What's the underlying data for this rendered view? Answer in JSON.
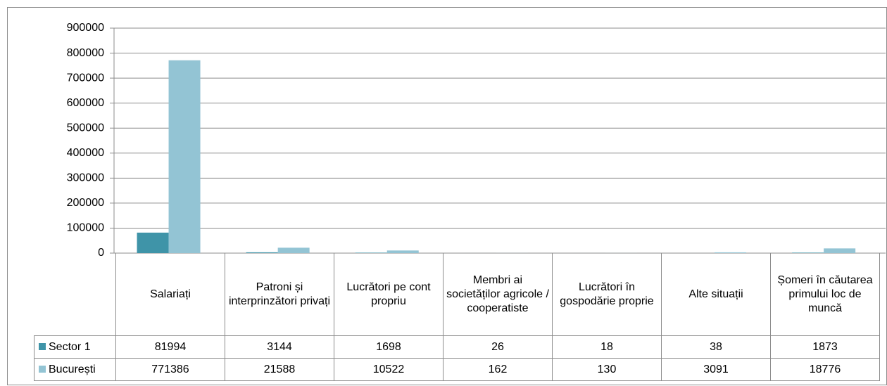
{
  "chart_data": {
    "type": "bar",
    "categories": [
      "Salariați",
      "Patroni și interprinzători privați",
      "Lucrători pe cont propriu",
      "Membri ai societăților agricole / cooperatiste",
      "Lucrători în gospodărie proprie",
      "Alte situații",
      "Șomeri în căutarea primului loc de muncă"
    ],
    "series": [
      {
        "name": "Sector 1",
        "color": "#3f94a8",
        "values": [
          81994,
          3144,
          1698,
          26,
          18,
          38,
          1873
        ]
      },
      {
        "name": "București",
        "color": "#93c4d4",
        "values": [
          771386,
          21588,
          10522,
          162,
          130,
          3091,
          18776
        ]
      }
    ],
    "ylim": [
      0,
      900000
    ],
    "yticks": [
      0,
      100000,
      200000,
      300000,
      400000,
      500000,
      600000,
      700000,
      800000,
      900000
    ],
    "grid": true
  }
}
